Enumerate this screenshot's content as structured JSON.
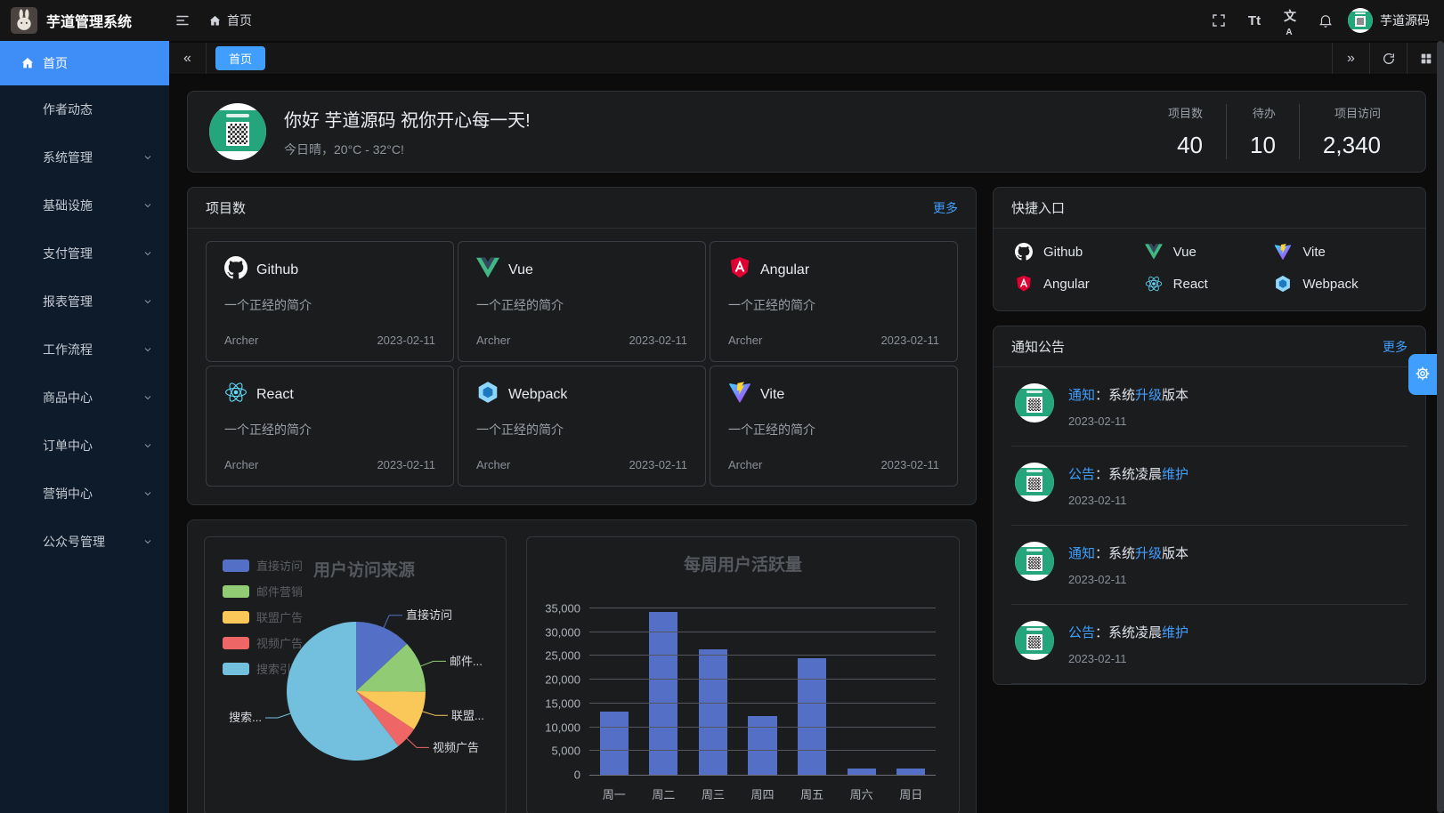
{
  "colors": {
    "accent": "#409eff",
    "sidebar_active": "#3f8ef7"
  },
  "header": {
    "app_title": "芋道管理系统",
    "breadcrumb_home": "首页",
    "username": "芋道源码",
    "font_icon_text": "Tt",
    "locale_cn": "文",
    "locale_a": "A"
  },
  "tabbar": {
    "active_tab": "首页",
    "scroll_left": "«",
    "scroll_right": "»"
  },
  "sidebar": {
    "items": [
      {
        "label": "首页",
        "icon": "home",
        "active": true,
        "chevron": false
      },
      {
        "label": "作者动态",
        "chevron": false
      },
      {
        "label": "系统管理",
        "chevron": true
      },
      {
        "label": "基础设施",
        "chevron": true
      },
      {
        "label": "支付管理",
        "chevron": true
      },
      {
        "label": "报表管理",
        "chevron": true
      },
      {
        "label": "工作流程",
        "chevron": true
      },
      {
        "label": "商品中心",
        "chevron": true
      },
      {
        "label": "订单中心",
        "chevron": true
      },
      {
        "label": "营销中心",
        "chevron": true
      },
      {
        "label": "公众号管理",
        "chevron": true
      }
    ]
  },
  "greeting": {
    "title": "你好 芋道源码 祝你开心每一天!",
    "subtitle": "今日晴，20°C - 32°C!",
    "stats": [
      {
        "label": "项目数",
        "value": "40"
      },
      {
        "label": "待办",
        "value": "10"
      },
      {
        "label": "项目访问",
        "value": "2,340"
      }
    ]
  },
  "projects": {
    "title": "项目数",
    "more": "更多",
    "items": [
      {
        "name": "Github",
        "icon": "github",
        "desc": "一个正经的简介",
        "author": "Archer",
        "date": "2023-02-11"
      },
      {
        "name": "Vue",
        "icon": "vue",
        "desc": "一个正经的简介",
        "author": "Archer",
        "date": "2023-02-11"
      },
      {
        "name": "Angular",
        "icon": "angular",
        "desc": "一个正经的简介",
        "author": "Archer",
        "date": "2023-02-11"
      },
      {
        "name": "React",
        "icon": "react",
        "desc": "一个正经的简介",
        "author": "Archer",
        "date": "2023-02-11"
      },
      {
        "name": "Webpack",
        "icon": "webpack",
        "desc": "一个正经的简介",
        "author": "Archer",
        "date": "2023-02-11"
      },
      {
        "name": "Vite",
        "icon": "vite",
        "desc": "一个正经的简介",
        "author": "Archer",
        "date": "2023-02-11"
      }
    ]
  },
  "shortcuts": {
    "title": "快捷入口",
    "items": [
      {
        "name": "Github",
        "icon": "github"
      },
      {
        "name": "Vue",
        "icon": "vue"
      },
      {
        "name": "Vite",
        "icon": "vite"
      },
      {
        "name": "Angular",
        "icon": "angular"
      },
      {
        "name": "React",
        "icon": "react"
      },
      {
        "name": "Webpack",
        "icon": "webpack"
      }
    ]
  },
  "notices": {
    "title": "通知公告",
    "more": "更多",
    "items": [
      {
        "segments": [
          {
            "t": "通知",
            "c": "blue"
          },
          {
            "t": "：系统"
          },
          {
            "t": "升级",
            "c": "blue"
          },
          {
            "t": "版本"
          }
        ],
        "date": "2023-02-11"
      },
      {
        "segments": [
          {
            "t": "公告",
            "c": "blue"
          },
          {
            "t": "：系统凌晨"
          },
          {
            "t": "维护",
            "c": "blue"
          }
        ],
        "date": "2023-02-11"
      },
      {
        "segments": [
          {
            "t": "通知",
            "c": "blue"
          },
          {
            "t": "：系统"
          },
          {
            "t": "升级",
            "c": "blue"
          },
          {
            "t": "版本"
          }
        ],
        "date": "2023-02-11"
      },
      {
        "segments": [
          {
            "t": "公告",
            "c": "blue"
          },
          {
            "t": "：系统凌晨"
          },
          {
            "t": "维护",
            "c": "blue"
          }
        ],
        "date": "2023-02-11"
      }
    ]
  },
  "chart_data": [
    {
      "type": "pie",
      "title": "用户访问来源",
      "legend": [
        "直接访问",
        "邮件营销",
        "联盟广告",
        "视频广告",
        "搜索引擎"
      ],
      "legend_position": "top-left",
      "series": [
        {
          "name": "直接访问",
          "value": 335
        },
        {
          "name": "邮件营销",
          "value": 310
        },
        {
          "name": "联盟广告",
          "value": 234
        },
        {
          "name": "视频广告",
          "value": 135
        },
        {
          "name": "搜索引擎",
          "value": 1548
        }
      ],
      "colors": [
        "#5470c6",
        "#91cc75",
        "#fac858",
        "#ee6666",
        "#73c0de"
      ],
      "display_labels": [
        "直接访问",
        "邮件...",
        "联盟...",
        "视频广告",
        "搜索..."
      ]
    },
    {
      "type": "bar",
      "title": "每周用户活跃量",
      "categories": [
        "周一",
        "周二",
        "周三",
        "周四",
        "周五",
        "周六",
        "周日"
      ],
      "values": [
        13300,
        34300,
        26300,
        12300,
        24600,
        1300,
        1300
      ],
      "ylim": [
        0,
        35000
      ],
      "ytick_step": 5000,
      "bar_color": "#5470c6",
      "grid": true
    }
  ]
}
